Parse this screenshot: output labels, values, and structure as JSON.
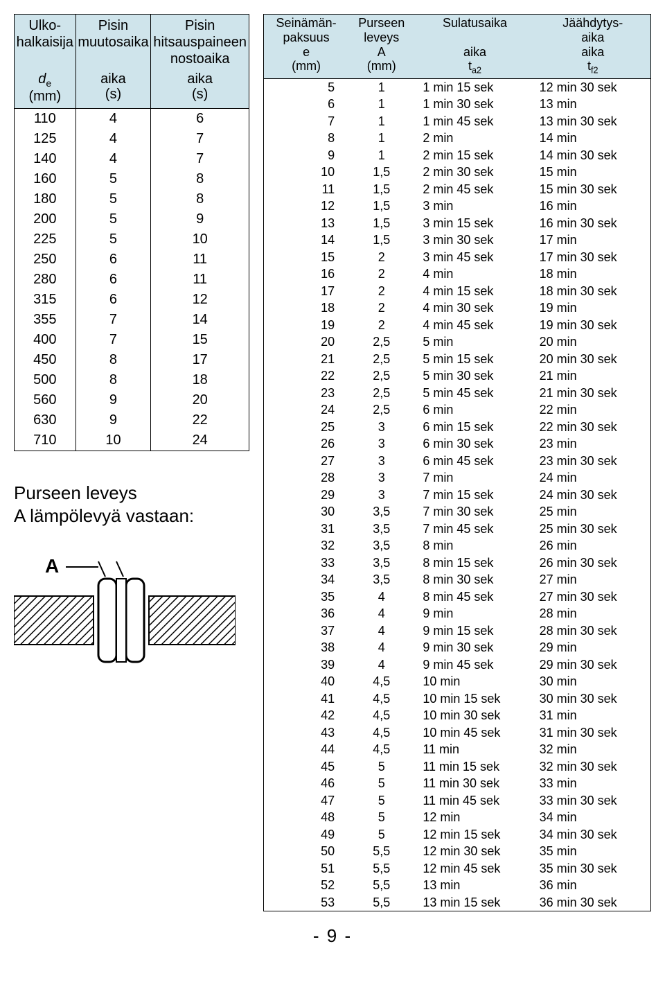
{
  "colors": {
    "header_bg": "#cfe4eb",
    "border": "#000000",
    "text": "#000000",
    "page_bg": "#ffffff"
  },
  "left_table": {
    "headers": {
      "col1_l1": "Ulko-",
      "col1_l2": "halkaisija",
      "col2_l1": "Pisin",
      "col2_l2": "muutosaika",
      "col3_l1": "Pisin",
      "col3_l2": "hitsauspaineen",
      "col3_l3": "nostoaika"
    },
    "subheaders": {
      "col1_a": "d",
      "col1_a_sub": "e",
      "col1_b": "(mm)",
      "col2_a": "aika",
      "col2_b": "(s)",
      "col3_a": "aika",
      "col3_b": "(s)"
    },
    "rows": [
      [
        "110",
        "4",
        "6"
      ],
      [
        "125",
        "4",
        "7"
      ],
      [
        "140",
        "4",
        "7"
      ],
      [
        "160",
        "5",
        "8"
      ],
      [
        "180",
        "5",
        "8"
      ],
      [
        "200",
        "5",
        "9"
      ],
      [
        "225",
        "5",
        "10"
      ],
      [
        "250",
        "6",
        "11"
      ],
      [
        "280",
        "6",
        "11"
      ],
      [
        "315",
        "6",
        "12"
      ],
      [
        "355",
        "7",
        "14"
      ],
      [
        "400",
        "7",
        "15"
      ],
      [
        "450",
        "8",
        "17"
      ],
      [
        "500",
        "8",
        "18"
      ],
      [
        "560",
        "9",
        "20"
      ],
      [
        "630",
        "9",
        "22"
      ],
      [
        "710",
        "10",
        "24"
      ]
    ]
  },
  "caption": {
    "line1": "Purseen leveys",
    "line2": "A lämpölevyä vastaan:"
  },
  "diagram_label": "A",
  "right_table": {
    "headers": {
      "col1_l1": "Seinämän-",
      "col1_l2": "paksuus",
      "col2_l1": "Purseen",
      "col2_l2": "leveys",
      "col3": "Sulatusaika",
      "col4_l1": "Jäähdytys-",
      "col4_l2": "aika"
    },
    "subheaders": {
      "col1_a": "e",
      "col1_b": "(mm)",
      "col2_a": "A",
      "col2_b": "(mm)",
      "col3_a": "aika",
      "col3_b": "t",
      "col3_b_sub": "a2",
      "col4_a": "aika",
      "col4_b": "t",
      "col4_b_sub": "f2"
    },
    "rows": [
      [
        "5",
        "1",
        "1 min 15 sek",
        "12 min 30 sek"
      ],
      [
        "6",
        "1",
        "1 min 30 sek",
        "13 min"
      ],
      [
        "7",
        "1",
        "1 min 45 sek",
        "13 min 30 sek"
      ],
      [
        "8",
        "1",
        "2 min",
        "14 min"
      ],
      [
        "9",
        "1",
        "2 min 15 sek",
        "14 min 30 sek"
      ],
      [
        "10",
        "1,5",
        "2 min 30 sek",
        "15 min"
      ],
      [
        "11",
        "1,5",
        "2 min 45 sek",
        "15 min 30 sek"
      ],
      [
        "12",
        "1,5",
        "3 min",
        "16 min"
      ],
      [
        "13",
        "1,5",
        "3 min 15 sek",
        "16 min 30 sek"
      ],
      [
        "14",
        "1,5",
        "3 min 30 sek",
        "17 min"
      ],
      [
        "15",
        "2",
        "3 min 45 sek",
        "17 min 30 sek"
      ],
      [
        "16",
        "2",
        "4 min",
        "18 min"
      ],
      [
        "17",
        "2",
        "4 min 15 sek",
        "18 min 30 sek"
      ],
      [
        "18",
        "2",
        "4 min 30 sek",
        "19 min"
      ],
      [
        "19",
        "2",
        "4 min 45 sek",
        "19 min 30 sek"
      ],
      [
        "20",
        "2,5",
        "5 min",
        "20 min"
      ],
      [
        "21",
        "2,5",
        "5 min 15 sek",
        "20 min 30 sek"
      ],
      [
        "22",
        "2,5",
        "5 min 30 sek",
        "21 min"
      ],
      [
        "23",
        "2,5",
        "5 min 45 sek",
        "21 min 30 sek"
      ],
      [
        "24",
        "2,5",
        "6 min",
        "22 min"
      ],
      [
        "25",
        "3",
        "6 min 15 sek",
        "22 min 30 sek"
      ],
      [
        "26",
        "3",
        "6 min 30 sek",
        "23 min"
      ],
      [
        "27",
        "3",
        "6 min 45 sek",
        "23 min 30 sek"
      ],
      [
        "28",
        "3",
        "7 min",
        "24 min"
      ],
      [
        "29",
        "3",
        "7 min 15 sek",
        "24 min 30 sek"
      ],
      [
        "30",
        "3,5",
        "7 min 30 sek",
        "25 min"
      ],
      [
        "31",
        "3,5",
        "7 min 45 sek",
        "25 min 30 sek"
      ],
      [
        "32",
        "3,5",
        "8 min",
        "26 min"
      ],
      [
        "33",
        "3,5",
        "8 min 15 sek",
        "26 min 30 sek"
      ],
      [
        "34",
        "3,5",
        "8 min 30 sek",
        "27 min"
      ],
      [
        "35",
        "4",
        "8 min 45 sek",
        "27 min 30 sek"
      ],
      [
        "36",
        "4",
        "9 min",
        "28 min"
      ],
      [
        "37",
        "4",
        "9 min 15 sek",
        "28 min 30 sek"
      ],
      [
        "38",
        "4",
        "9 min 30 sek",
        "29 min"
      ],
      [
        "39",
        "4",
        "9 min 45 sek",
        "29 min 30 sek"
      ],
      [
        "40",
        "4,5",
        "10 min",
        "30 min"
      ],
      [
        "41",
        "4,5",
        "10 min 15 sek",
        "30 min 30 sek"
      ],
      [
        "42",
        "4,5",
        "10 min 30 sek",
        "31 min"
      ],
      [
        "43",
        "4,5",
        "10 min 45 sek",
        "31 min 30 sek"
      ],
      [
        "44",
        "4,5",
        "11 min",
        "32 min"
      ],
      [
        "45",
        "5",
        "11 min 15 sek",
        "32 min 30 sek"
      ],
      [
        "46",
        "5",
        "11 min 30 sek",
        "33 min"
      ],
      [
        "47",
        "5",
        "11 min 45 sek",
        "33 min 30 sek"
      ],
      [
        "48",
        "5",
        "12 min",
        "34 min"
      ],
      [
        "49",
        "5",
        "12 min 15 sek",
        "34 min 30 sek"
      ],
      [
        "50",
        "5,5",
        "12 min 30 sek",
        "35 min"
      ],
      [
        "51",
        "5,5",
        "12 min 45 sek",
        "35 min 30 sek"
      ],
      [
        "52",
        "5,5",
        "13 min",
        "36 min"
      ],
      [
        "53",
        "5,5",
        "13 min 15 sek",
        "36 min 30 sek"
      ]
    ]
  },
  "page_number": "- 9 -"
}
